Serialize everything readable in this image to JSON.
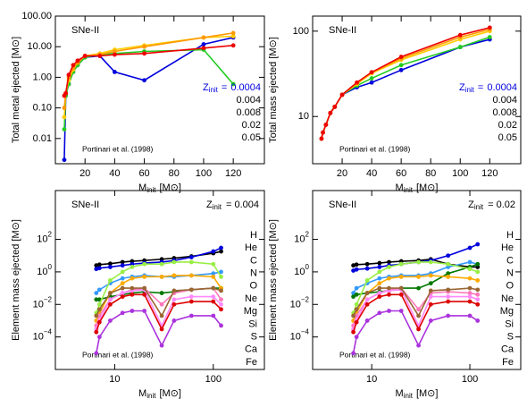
{
  "chart_data": [
    {
      "type": "line",
      "log_x": false,
      "log_y": true,
      "ylabel": "Total metal ejected [M⊙]",
      "xlabel": {
        "main": "M",
        "sub": "init",
        "unit": "[M⊙]"
      },
      "annotations": [
        "SNe-II",
        "Portinari et al. (1998)"
      ],
      "legend_title": {
        "main": "Z",
        "sub": "init",
        "eq": "="
      },
      "x": [
        6,
        7,
        9,
        12,
        15,
        20,
        30,
        40,
        60,
        100,
        120
      ],
      "xlim": [
        0,
        141
      ],
      "ylim": [
        0.0015,
        100
      ],
      "xticks": [
        20,
        40,
        60,
        80,
        100,
        120
      ],
      "yticks": [
        0.01,
        {
          "value": 0.1,
          "label": "0.10"
        },
        {
          "value": 1,
          "label": "1.00"
        },
        {
          "value": 10,
          "label": "10.00"
        },
        {
          "value": 100,
          "label": "100.00"
        }
      ],
      "series": [
        {
          "name": "0.0004",
          "color": "#0000dd",
          "values": [
            0.002,
            0.25,
            0.6,
            1.5,
            2.5,
            4.5,
            5,
            1.5,
            0.8,
            12,
            20
          ]
        },
        {
          "name": "0.004",
          "color": "#22cc22",
          "values": [
            0.02,
            0.25,
            0.6,
            1.5,
            2.5,
            4.5,
            5.5,
            6,
            7,
            8,
            0.6
          ]
        },
        {
          "name": "0.008",
          "color": "#ffcc00",
          "values": [
            0.05,
            0.3,
            0.8,
            1.8,
            3,
            5,
            6,
            8,
            11,
            20,
            22
          ]
        },
        {
          "name": "0.02",
          "color": "#ff9900",
          "values": [
            0.1,
            0.3,
            1,
            2,
            3,
            5,
            5.5,
            7,
            10,
            20,
            28
          ]
        },
        {
          "name": "0.05",
          "color": "#ee0000",
          "values": [
            0.25,
            0.3,
            1.2,
            2.5,
            3.5,
            5,
            5,
            5.5,
            6,
            9,
            11
          ]
        }
      ]
    },
    {
      "type": "line",
      "log_x": false,
      "log_y": true,
      "ylabel": "Total mass ejected [M⊙]",
      "xlabel": {
        "main": "M",
        "sub": "init",
        "unit": "[M⊙]"
      },
      "annotations": [
        "SNe-II",
        "Portinari et al. (1998)"
      ],
      "legend_title": {
        "main": "Z",
        "sub": "init",
        "eq": "="
      },
      "x": [
        6,
        7,
        9,
        12,
        15,
        20,
        30,
        40,
        60,
        100,
        120
      ],
      "xlim": [
        0,
        141
      ],
      "ylim": [
        2.8,
        150
      ],
      "xticks": [
        20,
        40,
        60,
        80,
        100,
        120
      ],
      "yticks": [
        10,
        100
      ],
      "series": [
        {
          "name": "0.0004",
          "color": "#0000dd",
          "values": [
            5.5,
            6.5,
            8,
            11,
            13,
            18,
            22,
            25,
            35,
            65,
            80
          ]
        },
        {
          "name": "0.004",
          "color": "#22cc22",
          "values": [
            5.5,
            6.5,
            8,
            11,
            13,
            18,
            23,
            28,
            40,
            65,
            85
          ]
        },
        {
          "name": "0.008",
          "color": "#ffcc00",
          "values": [
            5.5,
            6.5,
            8,
            11,
            13,
            18,
            24,
            32,
            46,
            80,
            100
          ]
        },
        {
          "name": "0.02",
          "color": "#ff9900",
          "values": [
            5.5,
            6.5,
            8,
            11,
            13,
            18,
            25,
            33,
            48,
            85,
            105
          ]
        },
        {
          "name": "0.05",
          "color": "#ee0000",
          "values": [
            5.5,
            6.5,
            8,
            11,
            13,
            18,
            25,
            33,
            50,
            90,
            110
          ]
        }
      ]
    },
    {
      "type": "line",
      "log_x": true,
      "log_y": true,
      "ylabel": "Element mass ejected [M⊙]",
      "xlabel": {
        "main": "M",
        "sub": "init",
        "unit": "[M⊙]"
      },
      "annotations": [
        "SNe-II",
        "Portinari et al. (1998)"
      ],
      "z_title": {
        "main": "Z",
        "sub": "init",
        "text": "= 0.004"
      },
      "x": [
        6.5,
        7,
        9,
        12,
        15,
        20,
        30,
        40,
        60,
        100,
        120
      ],
      "xlim": [
        2.5,
        330
      ],
      "ylim": [
        1e-06,
        100000
      ],
      "xticks": [
        10,
        100
      ],
      "yticks": [
        {
          "value": 0.0001,
          "label": "10",
          "sup": "−4"
        },
        {
          "value": 0.01,
          "label": "10",
          "sup": "−2"
        },
        {
          "value": 1,
          "label": "10",
          "sup": "0"
        },
        {
          "value": 100,
          "label": "10",
          "sup": "2"
        }
      ],
      "series": [
        {
          "name": "H",
          "color": "#000000",
          "values": [
            2.5,
            2.8,
            3.2,
            4,
            4.5,
            5,
            6,
            7,
            9,
            14,
            18
          ]
        },
        {
          "name": "He",
          "color": "#0000dd",
          "values": [
            1.5,
            1.7,
            2,
            2.5,
            3,
            3.5,
            4,
            5,
            8,
            18,
            30
          ]
        },
        {
          "name": "C",
          "color": "#3399ff",
          "values": [
            0.05,
            0.08,
            0.2,
            0.4,
            0.5,
            0.6,
            0.5,
            0.5,
            0.6,
            0.8,
            1
          ]
        },
        {
          "name": "N",
          "color": "#007700",
          "values": [
            0.02,
            0.02,
            0.03,
            0.04,
            0.05,
            0.06,
            0.05,
            0.06,
            0.08,
            0.1,
            0.1
          ]
        },
        {
          "name": "O",
          "color": "#99ee44",
          "values": [
            0.003,
            0.01,
            0.3,
            1,
            2,
            3,
            3,
            4,
            4,
            3,
            0.5
          ]
        },
        {
          "name": "Ne",
          "color": "#ffaa00",
          "values": [
            0.001,
            0.003,
            0.05,
            0.2,
            0.4,
            0.5,
            0.5,
            0.6,
            0.6,
            0.5,
            0.1
          ]
        },
        {
          "name": "Mg",
          "color": "#ff77bb",
          "values": [
            0.0005,
            0.002,
            0.02,
            0.05,
            0.08,
            0.1,
            0.01,
            0.05,
            0.08,
            0.1,
            0.02
          ]
        },
        {
          "name": "Si",
          "color": "#ff88ff",
          "values": [
            0.0003,
            0.001,
            0.02,
            0.05,
            0.07,
            0.08,
            0.0005,
            0.02,
            0.03,
            0.03,
            0.01
          ]
        },
        {
          "name": "S",
          "color": "#dd0000",
          "values": [
            0.0002,
            0.0008,
            0.01,
            0.03,
            0.04,
            0.04,
            0.0003,
            0.01,
            0.015,
            0.015,
            0.005
          ]
        },
        {
          "name": "Ca",
          "color": "#aa33dd",
          "values": [
            1e-05,
            0.0001,
            0.001,
            0.003,
            0.004,
            0.004,
            3e-05,
            0.001,
            0.002,
            0.002,
            0.0005
          ]
        },
        {
          "name": "Fe",
          "color": "#996633",
          "values": [
            0.002,
            0.005,
            0.05,
            0.1,
            0.1,
            0.1,
            0.002,
            0.07,
            0.08,
            0.1,
            0.07
          ]
        }
      ]
    },
    {
      "type": "line",
      "log_x": true,
      "log_y": true,
      "ylabel": "Element mass ejected [M⊙]",
      "xlabel": {
        "main": "M",
        "sub": "init",
        "unit": "[M⊙]"
      },
      "annotations": [
        "SNe-II",
        "Portinari et al. (1998)"
      ],
      "z_title": {
        "main": "Z",
        "sub": "init",
        "text": "= 0.02"
      },
      "x": [
        6.5,
        7,
        9,
        12,
        15,
        20,
        30,
        40,
        60,
        100,
        120
      ],
      "xlim": [
        2.5,
        330
      ],
      "ylim": [
        1e-06,
        100000
      ],
      "xticks": [
        10,
        100
      ],
      "yticks": [
        {
          "value": 0.0001,
          "label": "10",
          "sup": "−4"
        },
        {
          "value": 0.01,
          "label": "10",
          "sup": "−2"
        },
        {
          "value": 1,
          "label": "10",
          "sup": "0"
        },
        {
          "value": 100,
          "label": "10",
          "sup": "2"
        }
      ],
      "series": [
        {
          "name": "H",
          "color": "#000000",
          "values": [
            2.5,
            2.8,
            3,
            3.5,
            4,
            4.5,
            5,
            6,
            3,
            2,
            2
          ]
        },
        {
          "name": "He",
          "color": "#0000dd",
          "values": [
            1.2,
            1.4,
            1.6,
            2,
            2.5,
            3,
            4,
            5,
            10,
            30,
            50
          ]
        },
        {
          "name": "C",
          "color": "#3399ff",
          "values": [
            0.05,
            0.1,
            0.2,
            0.4,
            0.5,
            0.6,
            0.6,
            0.8,
            2,
            4,
            3
          ]
        },
        {
          "name": "N",
          "color": "#007700",
          "values": [
            0.03,
            0.04,
            0.05,
            0.06,
            0.07,
            0.1,
            0.1,
            0.2,
            0.8,
            2,
            3
          ]
        },
        {
          "name": "O",
          "color": "#99ee44",
          "values": [
            0.003,
            0.01,
            0.3,
            1,
            2,
            3,
            4,
            4,
            3,
            1.5,
            1
          ]
        },
        {
          "name": "Ne",
          "color": "#ffaa00",
          "values": [
            0.001,
            0.003,
            0.05,
            0.2,
            0.4,
            0.5,
            0.5,
            0.6,
            0.5,
            0.4,
            0.3
          ]
        },
        {
          "name": "Mg",
          "color": "#ff77bb",
          "values": [
            0.0005,
            0.002,
            0.02,
            0.05,
            0.08,
            0.1,
            0.005,
            0.05,
            0.06,
            0.05,
            0.04
          ]
        },
        {
          "name": "Si",
          "color": "#ff88ff",
          "values": [
            0.0003,
            0.001,
            0.02,
            0.05,
            0.07,
            0.08,
            0.0005,
            0.03,
            0.03,
            0.03,
            0.02
          ]
        },
        {
          "name": "S",
          "color": "#dd0000",
          "values": [
            0.0002,
            0.0008,
            0.01,
            0.03,
            0.04,
            0.04,
            0.0003,
            0.01,
            0.015,
            0.015,
            0.01
          ]
        },
        {
          "name": "Ca",
          "color": "#aa33dd",
          "values": [
            1e-05,
            0.0001,
            0.001,
            0.003,
            0.004,
            0.004,
            3e-05,
            0.001,
            0.002,
            0.002,
            0.001
          ]
        },
        {
          "name": "Fe",
          "color": "#996633",
          "values": [
            0.002,
            0.005,
            0.05,
            0.1,
            0.1,
            0.1,
            0.002,
            0.07,
            0.08,
            0.1,
            0.08
          ]
        }
      ]
    }
  ]
}
